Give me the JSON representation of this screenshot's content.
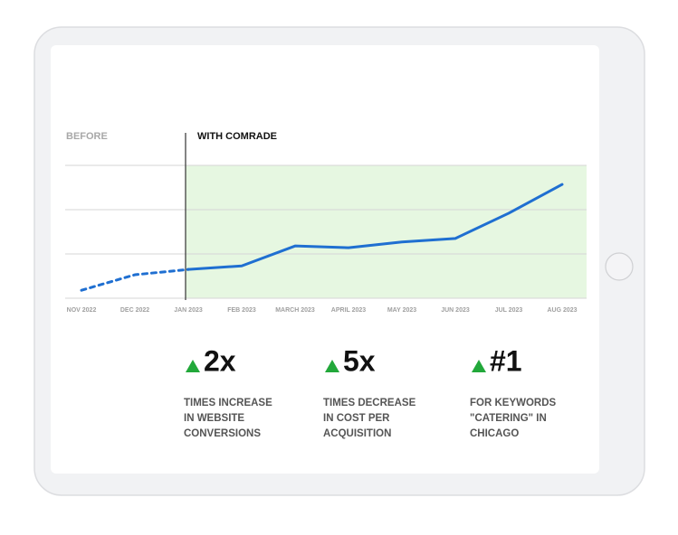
{
  "chart_data": {
    "type": "line",
    "categories": [
      "NOV 2022",
      "DEC 2022",
      "JAN 2023",
      "FEB 2023",
      "MARCH 2023",
      "APRIL 2023",
      "MAY 2023",
      "JUN 2023",
      "JUL 2023",
      "AUG 2023"
    ],
    "series": [
      {
        "name": "BEFORE",
        "color": "#1f6fd1",
        "values": [
          0.18,
          0.53,
          0.65,
          null,
          null,
          null,
          null,
          null,
          null,
          null
        ]
      },
      {
        "name": "WITH COMRADE",
        "color": "#1f6fd1",
        "values": [
          null,
          null,
          0.65,
          0.73,
          1.18,
          1.14,
          1.27,
          1.35,
          1.92,
          2.57
        ]
      }
    ],
    "ylim": [
      0,
      3
    ],
    "grid": true
  },
  "stats": [
    {
      "value": "2x",
      "lines": [
        "TIMES INCREASE",
        "IN WEBSITE",
        "CONVERSIONS"
      ]
    },
    {
      "value": "5x",
      "lines": [
        "TIMES DECREASE",
        "IN COST PER",
        "ACQUISITION"
      ]
    },
    {
      "value": "#1",
      "lines": [
        "FOR  KEYWORDS",
        "\"CATERING\" IN",
        "CHICAGO"
      ]
    }
  ]
}
